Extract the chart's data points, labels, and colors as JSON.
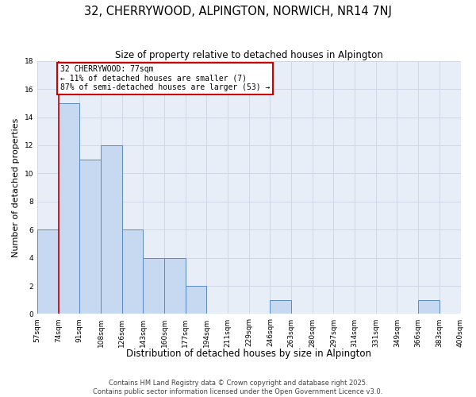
{
  "title": "32, CHERRYWOOD, ALPINGTON, NORWICH, NR14 7NJ",
  "subtitle": "Size of property relative to detached houses in Alpington",
  "xlabel": "Distribution of detached houses by size in Alpington",
  "ylabel": "Number of detached properties",
  "bin_edges": [
    "57sqm",
    "74sqm",
    "91sqm",
    "108sqm",
    "126sqm",
    "143sqm",
    "160sqm",
    "177sqm",
    "194sqm",
    "211sqm",
    "229sqm",
    "246sqm",
    "263sqm",
    "280sqm",
    "297sqm",
    "314sqm",
    "331sqm",
    "349sqm",
    "366sqm",
    "383sqm",
    "400sqm"
  ],
  "bar_values": [
    6,
    15,
    11,
    12,
    6,
    4,
    4,
    2,
    0,
    0,
    0,
    1,
    0,
    0,
    0,
    0,
    0,
    0,
    1,
    0
  ],
  "bar_color": "#c6d9f1",
  "bar_edge_color": "#5a8ac6",
  "vline_position": 1,
  "vline_color": "#cc0000",
  "annotation_text": "32 CHERRYWOOD: 77sqm\n← 11% of detached houses are smaller (7)\n87% of semi-detached houses are larger (53) →",
  "annotation_box_color": "#cc0000",
  "ylim": [
    0,
    18
  ],
  "yticks": [
    0,
    2,
    4,
    6,
    8,
    10,
    12,
    14,
    16,
    18
  ],
  "grid_color": "#d0d8e8",
  "background_color": "#e8eef8",
  "footer_text": "Contains HM Land Registry data © Crown copyright and database right 2025.\nContains public sector information licensed under the Open Government Licence v3.0.",
  "title_fontsize": 10.5,
  "subtitle_fontsize": 8.5,
  "ylabel_fontsize": 8,
  "xlabel_fontsize": 8.5,
  "tick_fontsize": 6.5,
  "annotation_fontsize": 7,
  "footer_fontsize": 6
}
